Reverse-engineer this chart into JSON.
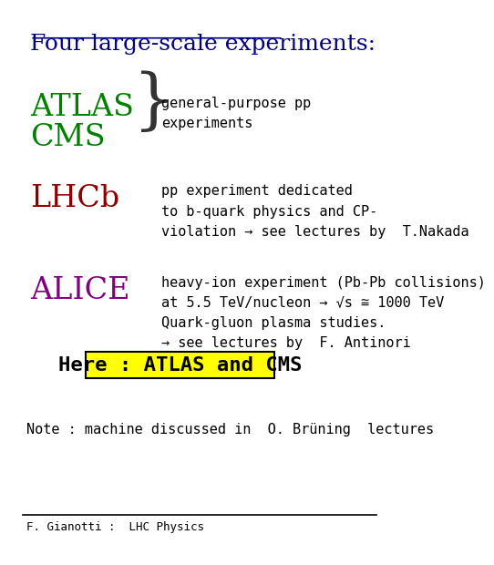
{
  "title": "Four large-scale experiments:",
  "title_color": "#000080",
  "title_fontsize": 18,
  "bg_color": "#ffffff",
  "atlas_label": "ATLAS",
  "cms_label": "CMS",
  "atlas_cms_color": "#008000",
  "atlas_cms_desc": "general-purpose pp\nexperiments",
  "lhcb_label": "LHCb",
  "lhcb_color": "#8B0000",
  "lhcb_desc": "pp experiment dedicated\nto b-quark physics and CP-\nviolation → see lectures by  T.Nakada",
  "alice_label": "ALICE",
  "alice_color": "#800080",
  "alice_desc": "heavy-ion experiment (Pb-Pb collisions)\nat 5.5 TeV/nucleon → √s ≅ 1000 TeV\nQuark-gluon plasma studies.\n→ see lectures by  F. Antinori",
  "highlight_text": "Here : ATLAS and CMS",
  "highlight_bg": "#ffff00",
  "highlight_border": "#000000",
  "note_text": "Note : machine discussed in  O. Brüning  lectures",
  "footer_text": "F. Gianotti :  LHC Physics",
  "label_fontsize": 24,
  "desc_fontsize": 11,
  "footer_fontsize": 9,
  "note_fontsize": 11,
  "highlight_fontsize": 16
}
